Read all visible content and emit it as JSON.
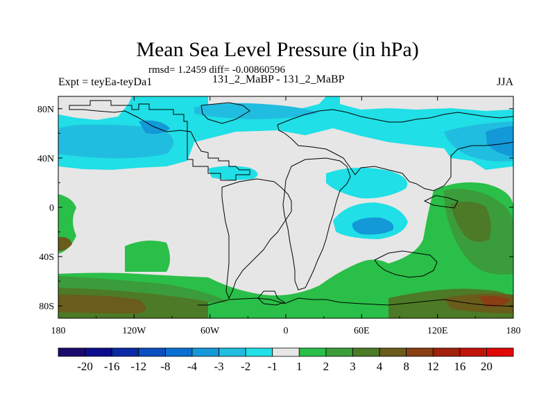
{
  "chart_data": {
    "type": "heatmap",
    "title": "Mean Sea Level Pressure (in hPa)",
    "subtitle": "rmsd= 1.2459 diff= -0.00860596",
    "left_label": "Expt = teyEa-teyDa1",
    "center_label": "131_2_MaBP - 131_2_MaBP",
    "right_label": "JJA",
    "x_ticks": [
      "180",
      "120W",
      "60W",
      "0",
      "60E",
      "120E",
      "180"
    ],
    "x_tick_values": [
      -180,
      -120,
      -60,
      0,
      60,
      120,
      180
    ],
    "y_ticks": [
      "80N",
      "40N",
      "0",
      "40S",
      "80S"
    ],
    "y_tick_values": [
      80,
      40,
      0,
      -40,
      -80
    ],
    "xlim": [
      -180,
      180
    ],
    "ylim": [
      -90,
      90
    ],
    "colorbar": {
      "labels": [
        "-20",
        "-16",
        "-12",
        "-8",
        "-4",
        "-3",
        "-2",
        "-1",
        "1",
        "2",
        "3",
        "4",
        "8",
        "12",
        "16",
        "20"
      ],
      "colors": [
        "#1b0a6e",
        "#0b0d8c",
        "#0b2aa6",
        "#0b4fc0",
        "#0a6fd0",
        "#1398d8",
        "#21bde0",
        "#20dfe6",
        "#e6e6e6",
        "#2abf48",
        "#3a9c3a",
        "#4d7a26",
        "#6a5c1a",
        "#8a3f12",
        "#a0220c",
        "#c0130a",
        "#e00808"
      ]
    }
  }
}
